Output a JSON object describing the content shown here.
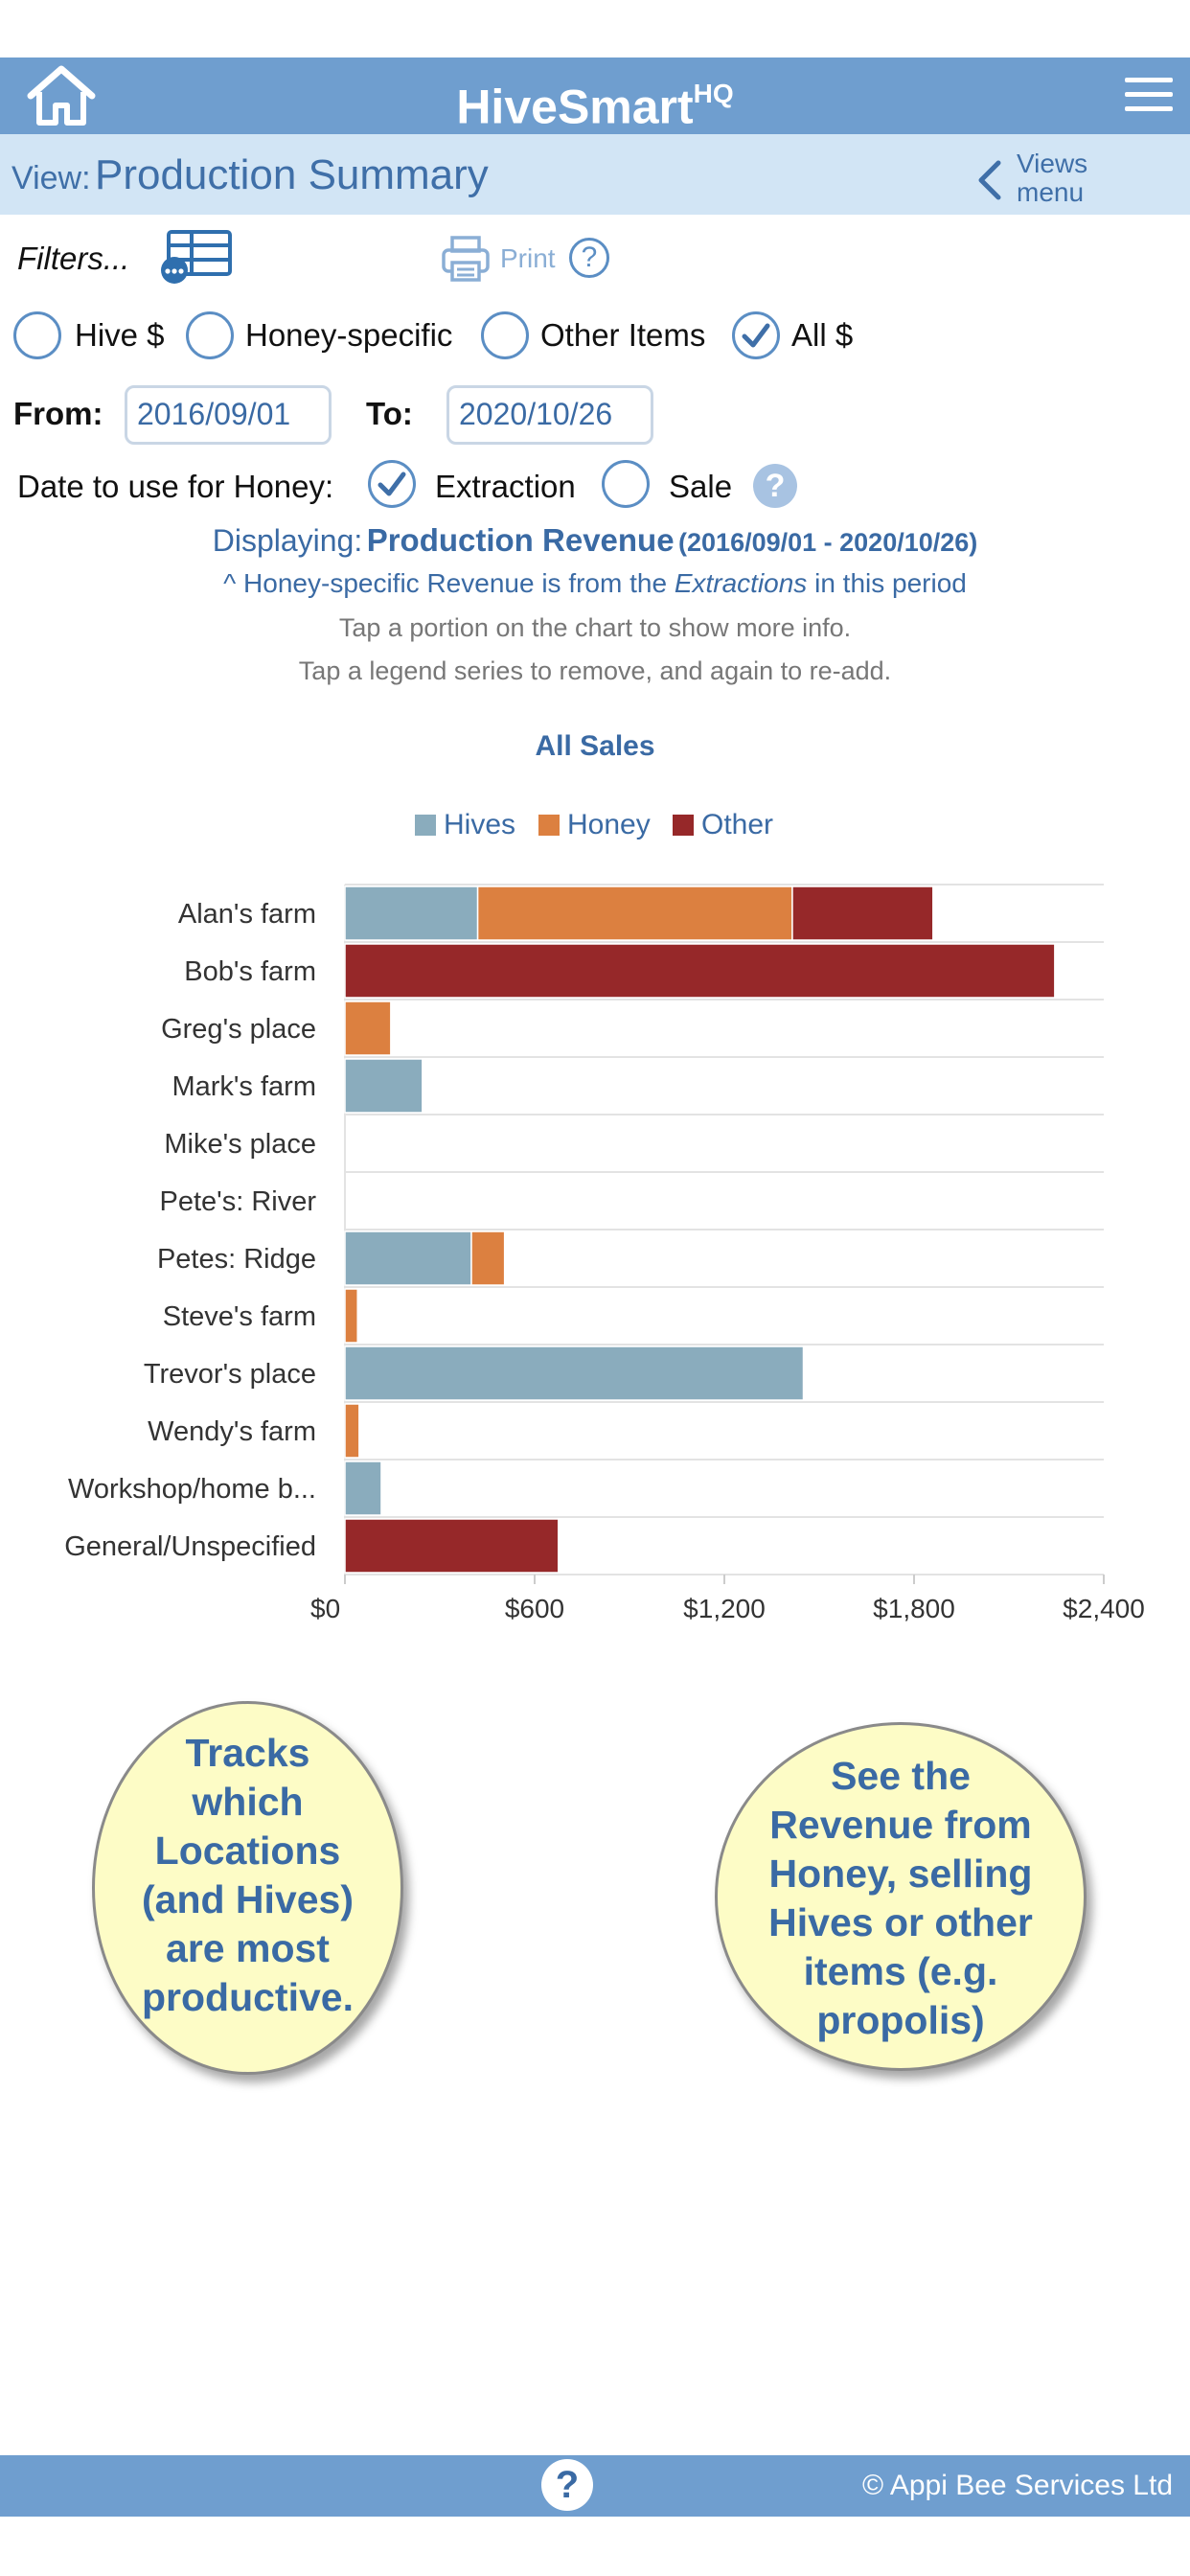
{
  "app": {
    "name": "HiveSmart",
    "name_sup": "HQ"
  },
  "view": {
    "prefix": "View:",
    "title": "Production Summary",
    "views_menu_line1": "Views",
    "views_menu_line2": "menu"
  },
  "toolbar": {
    "filters_label": "Filters...",
    "print_label": "Print"
  },
  "category_filter": {
    "options": [
      {
        "label": "Hive $",
        "checked": false
      },
      {
        "label": "Honey-specific",
        "checked": false
      },
      {
        "label": "Other Items",
        "checked": false
      },
      {
        "label": "All $",
        "checked": true
      }
    ]
  },
  "date_range": {
    "from_label": "From:",
    "from_value": "2016/09/01",
    "to_label": "To:",
    "to_value": "2020/10/26"
  },
  "honey_date": {
    "label": "Date to use for Honey:",
    "options": [
      {
        "label": "Extraction",
        "checked": true
      },
      {
        "label": "Sale",
        "checked": false
      }
    ]
  },
  "summary": {
    "displaying_prefix": "Displaying:",
    "displaying_title": "Production Revenue",
    "displaying_range": "(2016/09/01 - 2020/10/26)",
    "note_prefix": "^ Honey-specific Revenue is from the ",
    "note_em": "Extractions",
    "note_suffix": " in this period",
    "hint1": "Tap a portion on the chart to show more info.",
    "hint2": "Tap a legend series to remove, and again to re-add."
  },
  "chart_data": {
    "type": "bar",
    "orientation": "horizontal",
    "stacked": true,
    "title": "All Sales",
    "legend_position": "top",
    "categories": [
      "Alan's farm",
      "Bob's farm",
      "Greg's place",
      "Mark's farm",
      "Mike's place",
      "Pete's: River",
      "Petes: Ridge",
      "Steve's farm",
      "Trevor's place",
      "Wendy's farm",
      "Workshop/home b...",
      "General/Unspecified"
    ],
    "series": [
      {
        "name": "Hives",
        "color": "#8aacbd",
        "values": [
          420,
          0,
          0,
          245,
          0,
          0,
          400,
          0,
          1450,
          0,
          115,
          0
        ]
      },
      {
        "name": "Honey",
        "color": "#dc8040",
        "values": [
          995,
          0,
          145,
          0,
          0,
          0,
          105,
          40,
          0,
          45,
          0,
          0
        ]
      },
      {
        "name": "Other",
        "color": "#962829",
        "values": [
          445,
          2245,
          0,
          0,
          0,
          0,
          0,
          0,
          0,
          0,
          0,
          675
        ]
      }
    ],
    "xlim": [
      0,
      2400
    ],
    "x_ticks": [
      0,
      600,
      1200,
      1800,
      2400
    ],
    "x_tick_labels": [
      "$0",
      "$600",
      "$1,200",
      "$1,800",
      "$2,400"
    ],
    "grid": true
  },
  "callouts": {
    "left": [
      "Tracks",
      "which",
      "Locations",
      "(and Hives)",
      "are most",
      "productive."
    ],
    "right": [
      "See the",
      "Revenue from",
      "Honey, selling",
      "Hives or other",
      "items (e.g.",
      "propolis)"
    ]
  },
  "footer": {
    "help_glyph": "?",
    "copyright": "© Appi Bee Services Ltd"
  },
  "icons": {
    "help_glyph": "?"
  }
}
